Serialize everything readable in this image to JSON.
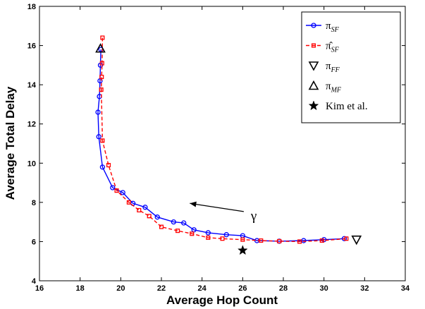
{
  "chart_data": {
    "type": "line",
    "xlabel": "Average Hop Count",
    "ylabel": "Average Total Delay",
    "xlim": [
      16,
      34
    ],
    "ylim": [
      4,
      18
    ],
    "xticks": [
      16,
      18,
      20,
      22,
      24,
      26,
      28,
      30,
      32,
      34
    ],
    "yticks": [
      4,
      6,
      8,
      10,
      12,
      14,
      16,
      18
    ],
    "grid": false,
    "legend_position": "top-right",
    "series": [
      {
        "name": "π",
        "name_sub": "SF",
        "color": "#0000ff",
        "line_style": "solid",
        "marker": "circle",
        "x": [
          19.02,
          19.0,
          18.98,
          18.95,
          18.88,
          18.92,
          19.1,
          19.6,
          20.1,
          20.6,
          21.2,
          21.8,
          22.6,
          23.1,
          23.6,
          24.3,
          25.2,
          26.0,
          26.7,
          27.8,
          29.0,
          30.0,
          31.0
        ],
        "y": [
          15.8,
          15.0,
          14.2,
          13.4,
          12.6,
          11.35,
          9.8,
          8.75,
          8.5,
          7.95,
          7.75,
          7.25,
          7.0,
          6.95,
          6.6,
          6.45,
          6.35,
          6.3,
          6.05,
          6.02,
          6.05,
          6.1,
          6.15
        ]
      },
      {
        "name": "π̂",
        "name_sub": "SF",
        "color": "#ff0000",
        "line_style": "dashed",
        "marker": "square",
        "x": [
          19.1,
          19.08,
          19.06,
          19.04,
          19.1,
          19.4,
          19.8,
          20.4,
          20.9,
          21.4,
          22.0,
          22.8,
          23.5,
          24.3,
          25.0,
          26.0,
          26.9,
          27.8,
          28.8,
          29.9,
          31.1
        ],
        "y": [
          16.4,
          15.1,
          14.4,
          13.75,
          11.15,
          9.9,
          8.6,
          8.0,
          7.6,
          7.3,
          6.75,
          6.55,
          6.4,
          6.2,
          6.15,
          6.1,
          6.05,
          6.02,
          6.0,
          6.05,
          6.15
        ]
      },
      {
        "name": "π",
        "name_sub": "FF",
        "color": "#000000",
        "marker": "triangle-down",
        "x": [
          31.6
        ],
        "y": [
          6.1
        ]
      },
      {
        "name": "π",
        "name_sub": "MF",
        "color": "#000000",
        "marker": "triangle-up",
        "x": [
          19.0
        ],
        "y": [
          15.85
        ]
      },
      {
        "name": "Kim et al.",
        "name_sub": "",
        "color": "#000000",
        "marker": "star",
        "x": [
          26.0
        ],
        "y": [
          5.55
        ]
      }
    ],
    "annotations": [
      {
        "text": "γ",
        "x": 26.4,
        "y": 7.1,
        "arrow_to": [
          23.4,
          7.95
        ]
      }
    ]
  }
}
